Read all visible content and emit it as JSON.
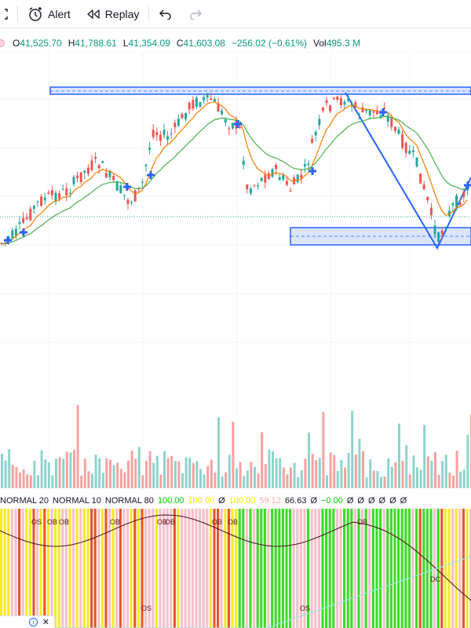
{
  "toolbar": {
    "alert_label": "Alert",
    "replay_label": "Replay"
  },
  "ohlc": {
    "open_key": "O",
    "open": "41,525.70",
    "high_key": "H",
    "high": "41,788.61",
    "low_key": "L",
    "low": "41,354.09",
    "close_key": "C",
    "close": "41,603.08",
    "change": "−256.02 (−0.61%)",
    "vol_key": "Vol",
    "vol": "495.3 M"
  },
  "indicator_legend": {
    "items": [
      "NORMAL 20",
      "NORMAL 10",
      "NORMAL 80",
      "100.00",
      "100.00",
      "Ø",
      "100.00",
      "59.12",
      "66.63",
      "Ø",
      "−0.00",
      "Ø",
      "Ø",
      "Ø",
      "Ø",
      "Ø",
      "Ø"
    ],
    "colors": [
      "#131722",
      "#131722",
      "#131722",
      "#00c800",
      "#f2e600",
      "#131722",
      "#f2e600",
      "#f7a6b7",
      "#131722",
      "#131722",
      "#00c800",
      "#131722",
      "#131722",
      "#131722",
      "#131722",
      "#131722",
      "#131722"
    ]
  },
  "annotations": {
    "ob_labels": [
      "OS",
      "OB",
      "OB",
      "OB",
      "OB",
      "OB",
      "OB",
      "OB",
      "OB",
      "OS",
      "OS",
      "DC"
    ]
  },
  "colors": {
    "bull": "#26a69a",
    "bear": "#ef5350",
    "ema_fast": "#f57c00",
    "ema_slow": "#4caf50",
    "drawing": "#2962ff",
    "vol_bull": "#8fd3cc",
    "vol_bear": "#f4a3a0"
  },
  "corner": {
    "info_icon": "i",
    "close_icon": "✕"
  }
}
